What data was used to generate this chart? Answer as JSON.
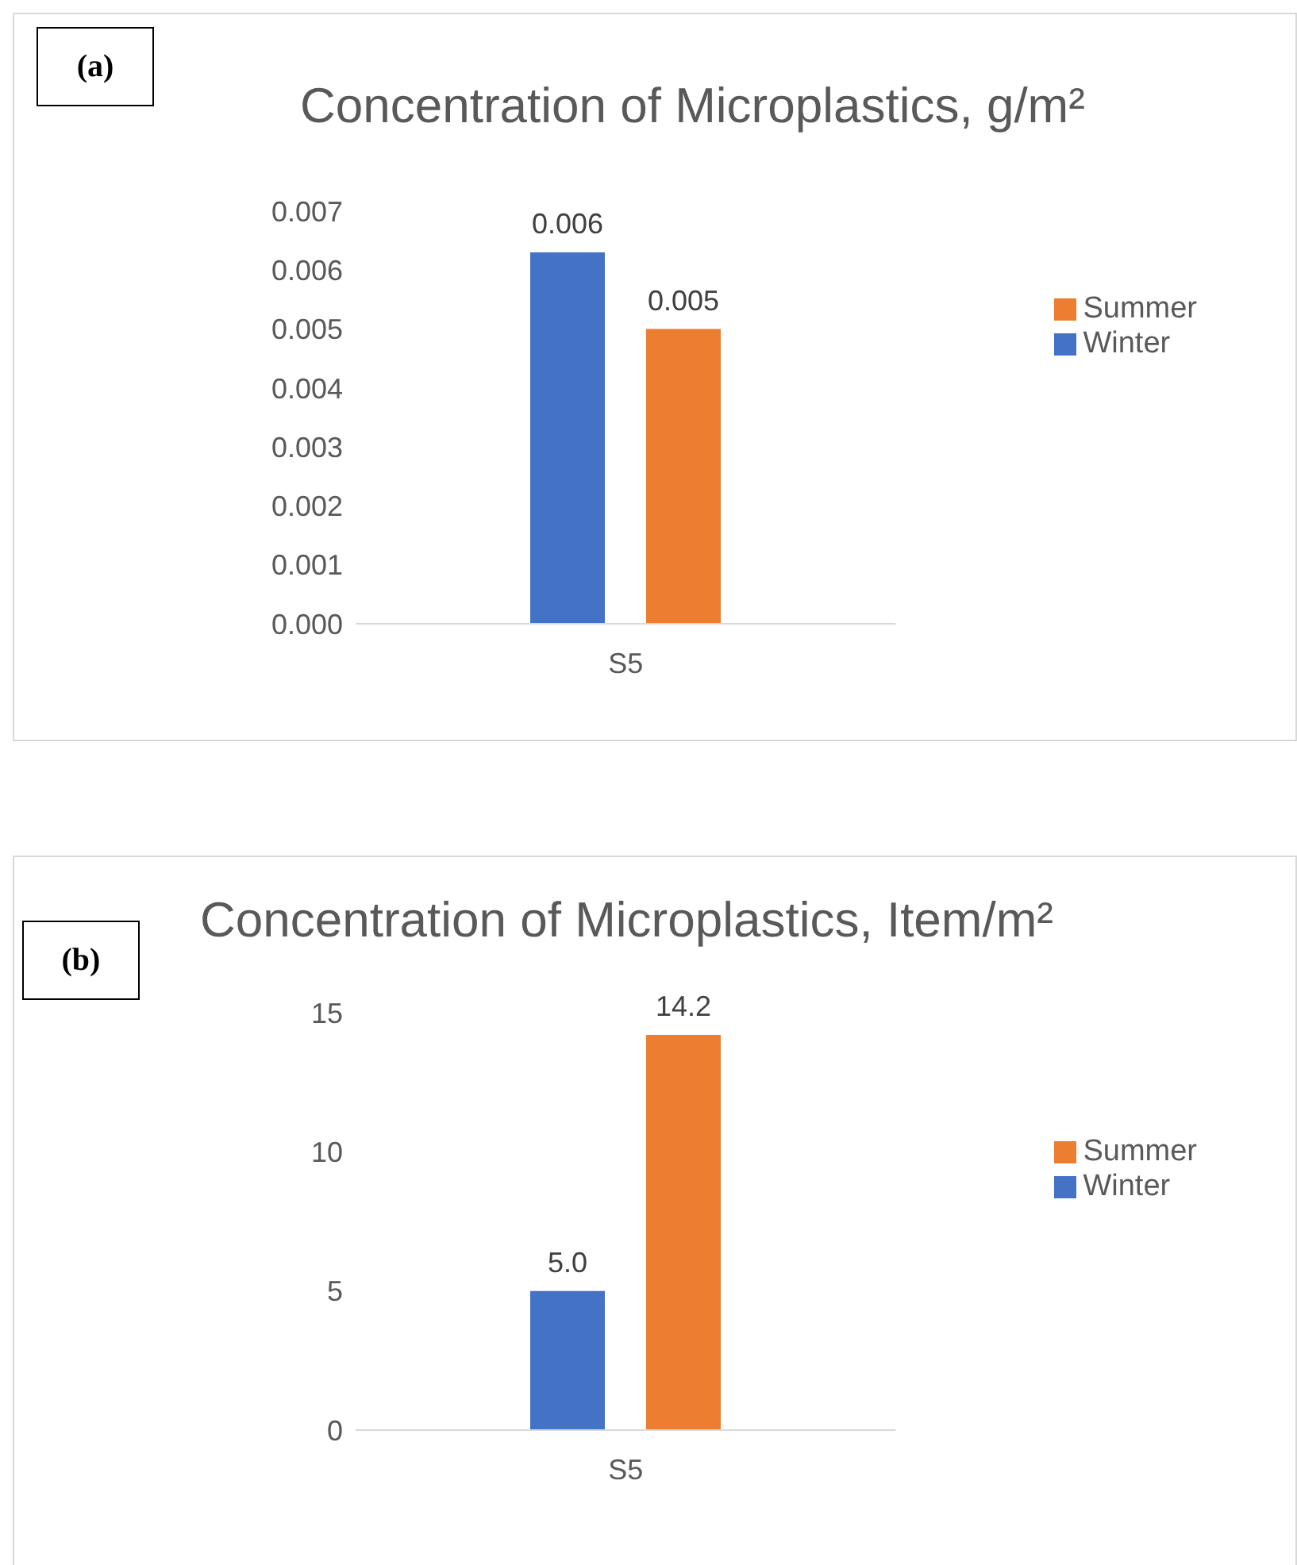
{
  "chart_data": [
    {
      "type": "bar",
      "title": "Concentration of Microplastics, g/m²",
      "annotations": [
        "(a)"
      ],
      "categories": [
        "S5"
      ],
      "series": [
        {
          "name": "Winter",
          "color": "#4472c4",
          "values": [
            0.0063
          ],
          "value_labels": [
            "0.006"
          ]
        },
        {
          "name": "Summer",
          "color": "#ed7d31",
          "values": [
            0.005
          ],
          "value_labels": [
            "0.005"
          ]
        }
      ],
      "ylim": [
        0,
        0.007
      ],
      "yticks": [
        {
          "value": 0,
          "label": "0.000"
        },
        {
          "value": 0.001,
          "label": "0.001"
        },
        {
          "value": 0.002,
          "label": "0.002"
        },
        {
          "value": 0.003,
          "label": "0.003"
        },
        {
          "value": 0.004,
          "label": "0.004"
        },
        {
          "value": 0.005,
          "label": "0.005"
        },
        {
          "value": 0.006,
          "label": "0.006"
        },
        {
          "value": 0.007,
          "label": "0.007"
        }
      ],
      "grid": false,
      "legend": "right"
    },
    {
      "type": "bar",
      "title": "Concentration of Microplastics, Item/m²",
      "annotations": [
        "(b)"
      ],
      "categories": [
        "S5"
      ],
      "series": [
        {
          "name": "Winter",
          "color": "#4472c4",
          "values": [
            5.0
          ],
          "value_labels": [
            "5.0"
          ]
        },
        {
          "name": "Summer",
          "color": "#ed7d31",
          "values": [
            14.2
          ],
          "value_labels": [
            "14.2"
          ]
        }
      ],
      "ylim": [
        0,
        15
      ],
      "yticks": [
        0,
        5,
        10,
        15
      ],
      "grid": false,
      "legend": "right"
    }
  ]
}
